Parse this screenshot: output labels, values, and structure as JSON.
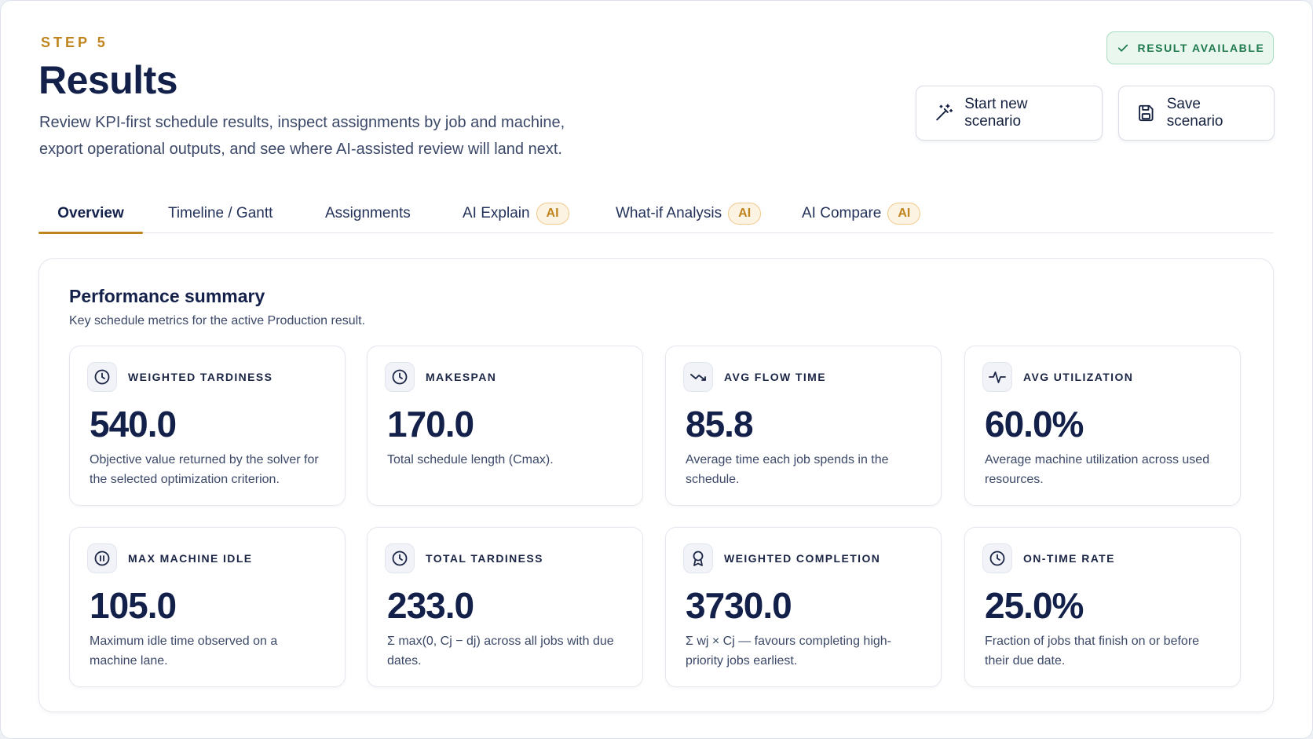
{
  "header": {
    "step_label": "STEP 5",
    "title": "Results",
    "description": "Review KPI-first schedule results, inspect assignments by job and machine, export operational outputs, and see where AI-assisted review will land next.",
    "status_badge": "RESULT AVAILABLE",
    "start_new_label": "Start new scenario",
    "save_label": "Save scenario"
  },
  "tabs": [
    {
      "label": "Overview",
      "ai": ""
    },
    {
      "label": "Timeline / Gantt",
      "ai": ""
    },
    {
      "label": "Assignments",
      "ai": ""
    },
    {
      "label": "AI Explain",
      "ai": "AI"
    },
    {
      "label": "What-if Analysis",
      "ai": "AI"
    },
    {
      "label": "AI Compare",
      "ai": "AI"
    }
  ],
  "summary": {
    "title": "Performance summary",
    "subtitle": "Key schedule metrics for the active Production result."
  },
  "metrics": [
    {
      "label": "WEIGHTED TARDINESS",
      "value": "540.0",
      "icon": "clock-icon",
      "desc": "Objective value returned by the solver for the selected optimization criterion."
    },
    {
      "label": "MAKESPAN",
      "value": "170.0",
      "icon": "clock-icon",
      "desc": "Total schedule length (Cmax)."
    },
    {
      "label": "AVG FLOW TIME",
      "value": "85.8",
      "icon": "trend-down-icon",
      "desc": "Average time each job spends in the schedule."
    },
    {
      "label": "AVG UTILIZATION",
      "value": "60.0%",
      "icon": "activity-icon",
      "desc": "Average machine utilization across used resources."
    },
    {
      "label": "MAX MACHINE IDLE",
      "value": "105.0",
      "icon": "pause-icon",
      "desc": "Maximum idle time observed on a machine lane."
    },
    {
      "label": "TOTAL TARDINESS",
      "value": "233.0",
      "icon": "clock-icon",
      "desc": "Σ max(0, Cj − dj) across all jobs with due dates."
    },
    {
      "label": "WEIGHTED COMPLETION",
      "value": "3730.0",
      "icon": "award-icon",
      "desc": "Σ wj × Cj — favours completing high-priority jobs earliest."
    },
    {
      "label": "ON-TIME RATE",
      "value": "25.0%",
      "icon": "clock-icon",
      "desc": "Fraction of jobs that finish on or before their due date."
    }
  ]
}
